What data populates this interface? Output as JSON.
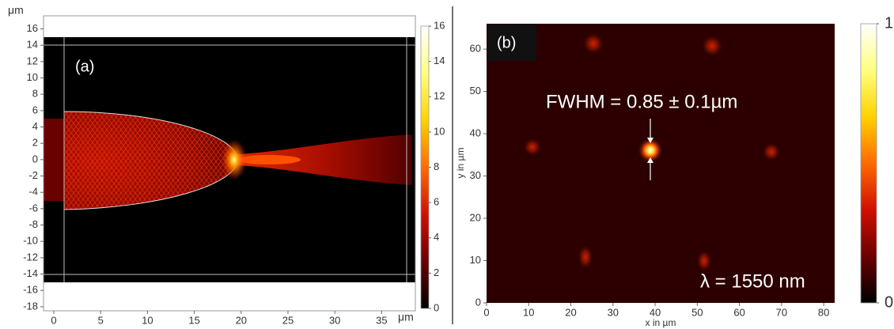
{
  "chart_data": [
    {
      "type": "heatmap",
      "label": "(a)",
      "x_unit": "μm",
      "y_unit": "μm",
      "xlim": [
        -1.1,
        38.6
      ],
      "ylim": [
        -18.5,
        17.6
      ],
      "xticks": [
        0,
        5,
        10,
        15,
        20,
        25,
        30,
        35
      ],
      "yticks": [
        -18,
        -16,
        -14,
        -12,
        -10,
        -8,
        -6,
        -4,
        -2,
        0,
        2,
        4,
        6,
        8,
        10,
        12,
        14,
        16
      ],
      "colorbar": {
        "lim": [
          0,
          16
        ],
        "ticks": [
          0,
          2,
          4,
          6,
          8,
          10,
          12,
          14,
          16
        ]
      },
      "colormap": [
        "#000000",
        "#6a0000",
        "#d01000",
        "#ff6a00",
        "#ffd200",
        "#ffff80",
        "#ffffff"
      ]
    },
    {
      "type": "heatmap",
      "label": "(b)",
      "xlabel": "x in µm",
      "ylabel": "y in µm",
      "xlim": [
        0,
        82.6
      ],
      "ylim": [
        0,
        66
      ],
      "xticks": [
        0,
        10,
        20,
        30,
        40,
        50,
        60,
        70,
        80
      ],
      "yticks": [
        0,
        10,
        20,
        30,
        40,
        50,
        60
      ],
      "colorbar": {
        "lim": [
          0,
          1
        ],
        "ticks": [
          0,
          1
        ]
      },
      "colormap": [
        "#000000",
        "#6a0000",
        "#d01000",
        "#ff6a00",
        "#ffd200",
        "#ffff80",
        "#ffffff"
      ],
      "annotations": [
        "FWHM = 0.85 ± 0.1µm",
        "λ = 1550 nm"
      ]
    }
  ]
}
